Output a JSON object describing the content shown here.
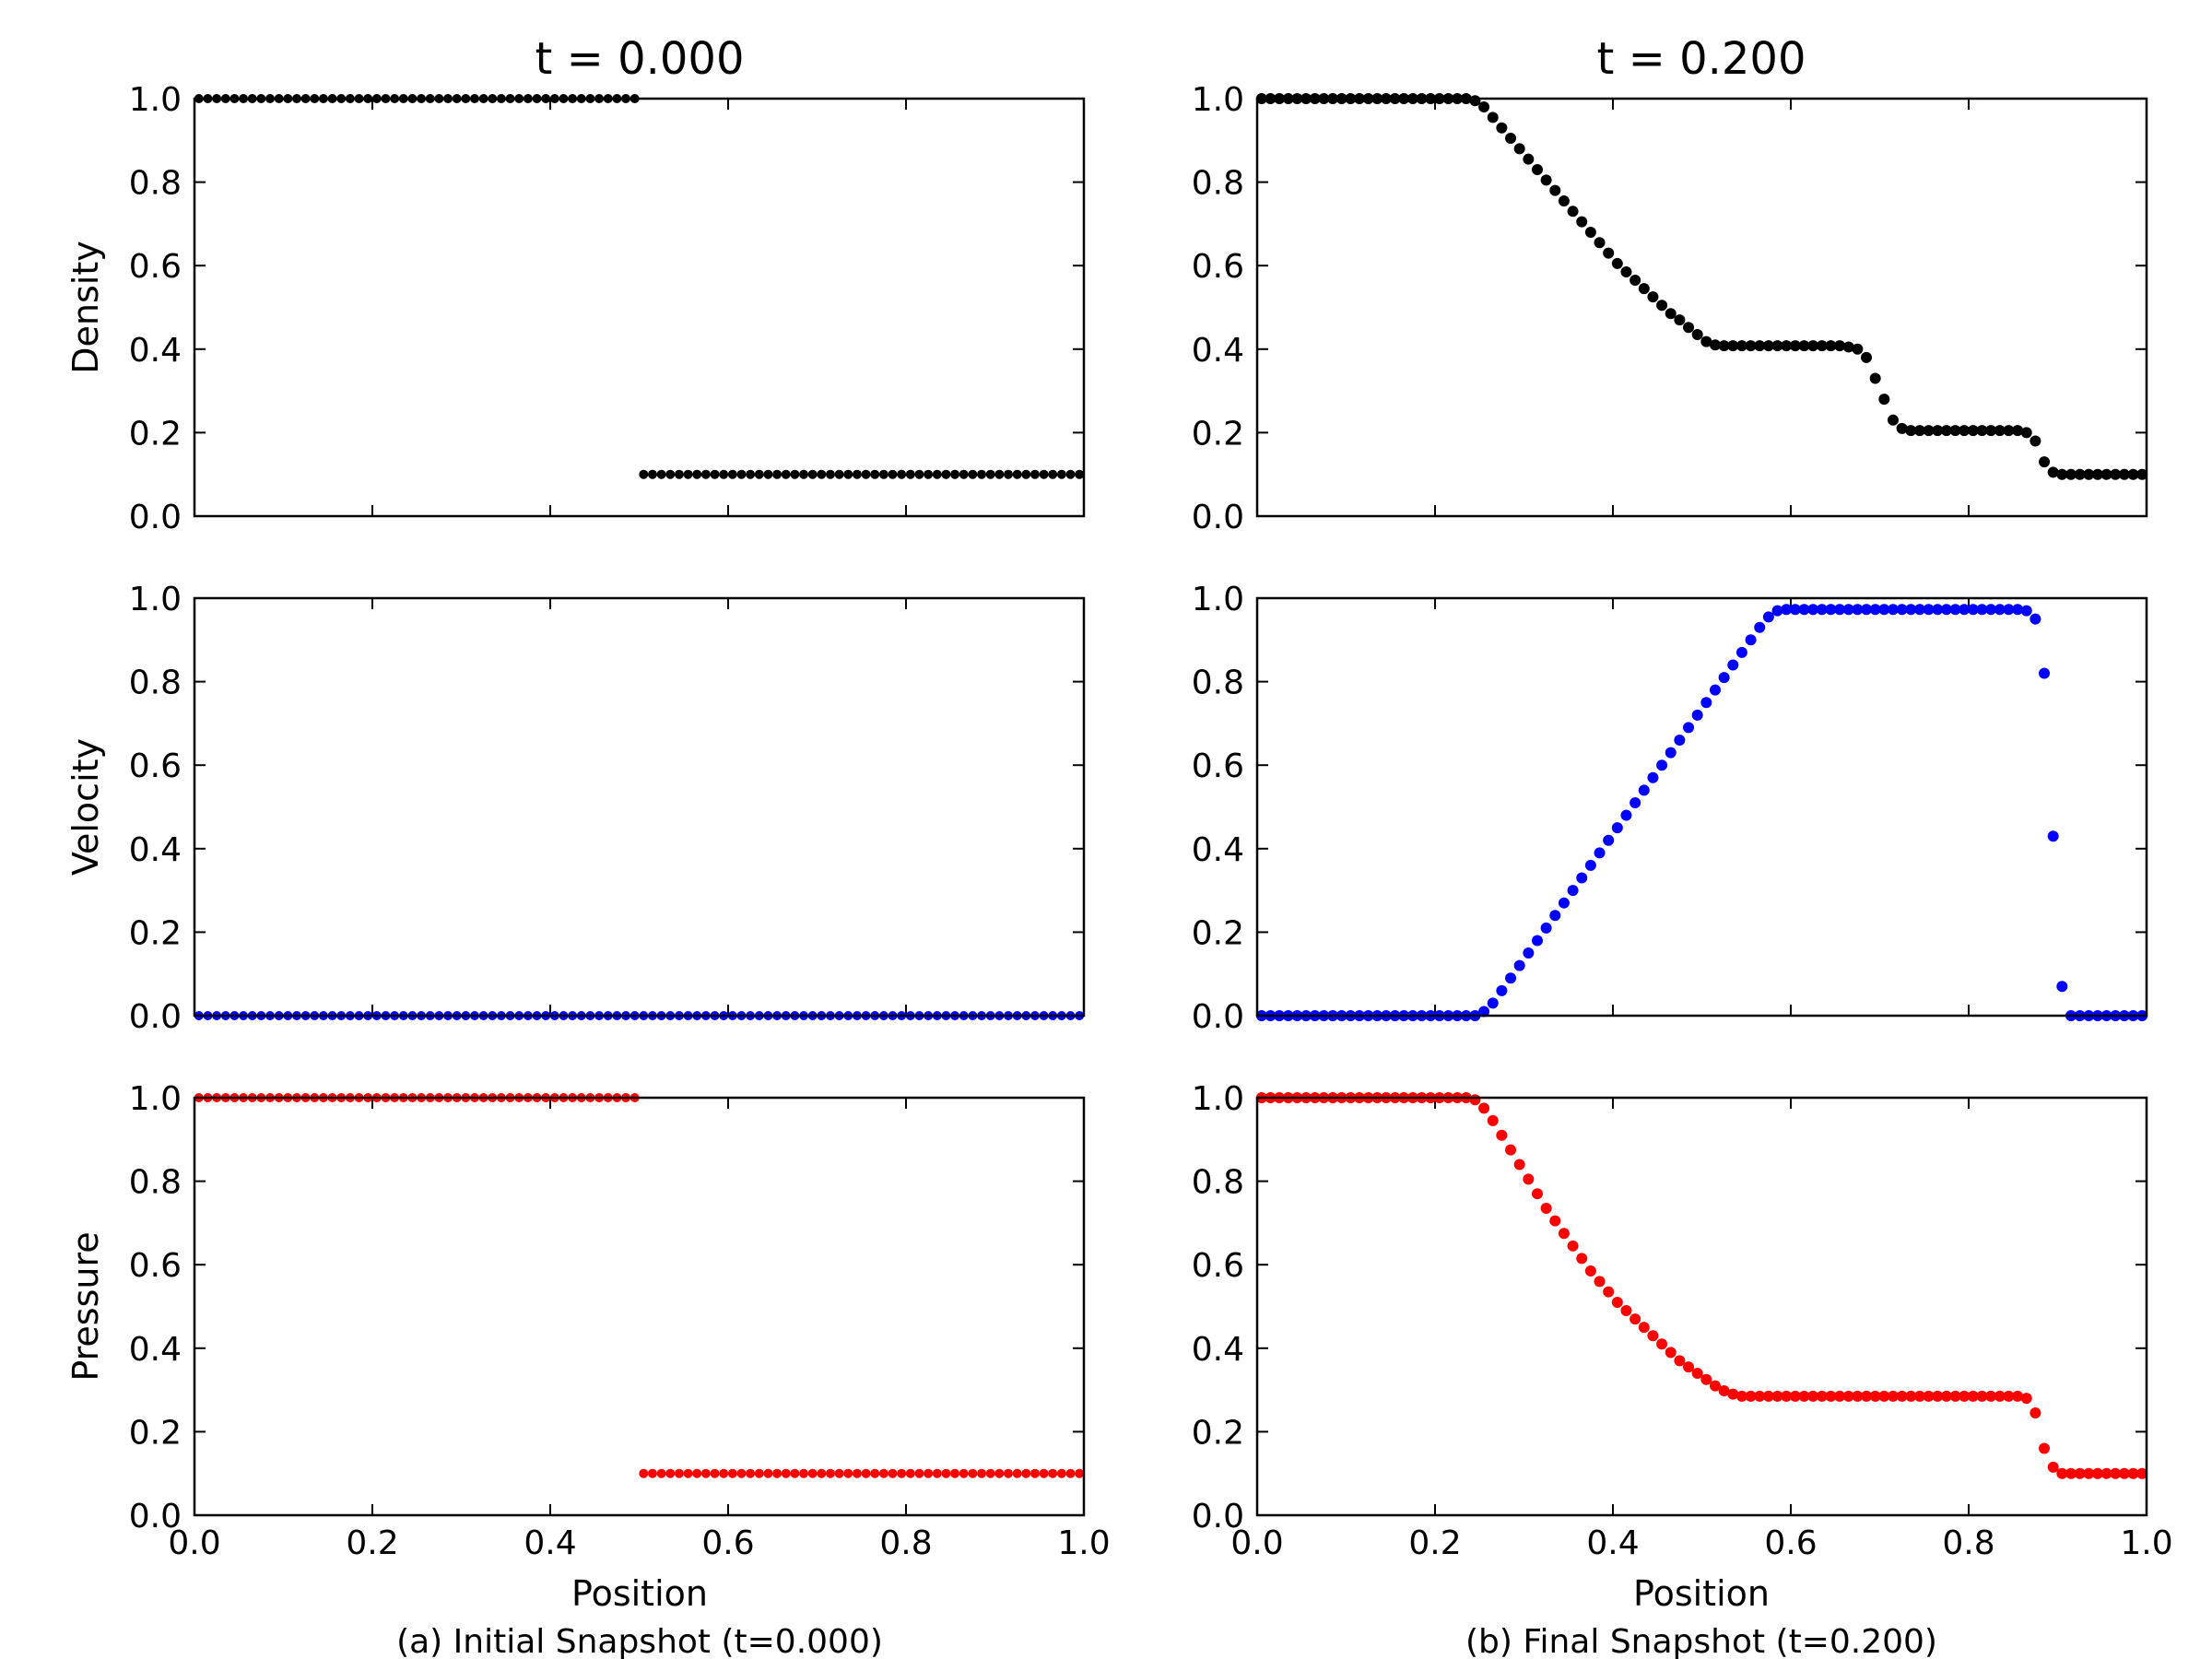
{
  "columns": [
    {
      "title": "t = 0.000",
      "xlabel": "Position",
      "caption": "(a) Initial Snapshot (t=0.000)"
    },
    {
      "title": "t = 0.200",
      "xlabel": "Position",
      "caption": "(b) Final Snapshot (t=0.200)"
    }
  ],
  "chart_data": [
    {
      "type": "scatter",
      "column": 0,
      "row": 0,
      "ylabel": "Density",
      "xlim": [
        0,
        1
      ],
      "ylim": [
        0,
        1
      ],
      "color": "#000000",
      "grid": false,
      "xticks": [
        "0.0",
        "0.2",
        "0.4",
        "0.6",
        "0.8",
        "1.0"
      ],
      "yticks": [
        "0.0",
        "0.2",
        "0.4",
        "0.6",
        "0.8",
        "1.0"
      ],
      "segments": [
        {
          "x_start": 0.005,
          "x_end": 0.495,
          "y_start": 1.0,
          "y_end": 1.0,
          "step": 0.01
        },
        {
          "x_start": 0.505,
          "x_end": 0.995,
          "y_start": 0.1,
          "y_end": 0.1,
          "step": 0.01
        }
      ]
    },
    {
      "type": "scatter",
      "column": 0,
      "row": 1,
      "ylabel": "Velocity",
      "xlim": [
        0,
        1
      ],
      "ylim": [
        0,
        1
      ],
      "color": "#0000ff",
      "grid": false,
      "xticks": [
        "0.0",
        "0.2",
        "0.4",
        "0.6",
        "0.8",
        "1.0"
      ],
      "yticks": [
        "0.0",
        "0.2",
        "0.4",
        "0.6",
        "0.8",
        "1.0"
      ],
      "segments": [
        {
          "x_start": 0.005,
          "x_end": 0.995,
          "y_start": 0.0,
          "y_end": 0.0,
          "step": 0.01
        }
      ]
    },
    {
      "type": "scatter",
      "column": 0,
      "row": 2,
      "ylabel": "Pressure",
      "xlim": [
        0,
        1
      ],
      "ylim": [
        0,
        1
      ],
      "color": "#ff0000",
      "grid": false,
      "xticks": [
        "0.0",
        "0.2",
        "0.4",
        "0.6",
        "0.8",
        "1.0"
      ],
      "yticks": [
        "0.0",
        "0.2",
        "0.4",
        "0.6",
        "0.8",
        "1.0"
      ],
      "segments": [
        {
          "x_start": 0.005,
          "x_end": 0.495,
          "y_start": 1.0,
          "y_end": 1.0,
          "step": 0.01
        },
        {
          "x_start": 0.505,
          "x_end": 0.995,
          "y_start": 0.1,
          "y_end": 0.1,
          "step": 0.01
        }
      ]
    },
    {
      "type": "scatter",
      "column": 1,
      "row": 0,
      "ylabel": "",
      "xlim": [
        0,
        1
      ],
      "ylim": [
        0,
        1
      ],
      "color": "#000000",
      "grid": false,
      "xticks": [
        "0.0",
        "0.2",
        "0.4",
        "0.6",
        "0.8",
        "1.0"
      ],
      "yticks": [
        "0.0",
        "0.2",
        "0.4",
        "0.6",
        "0.8",
        "1.0"
      ],
      "x": [
        0.005,
        0.015,
        0.025,
        0.035,
        0.045,
        0.055,
        0.065,
        0.075,
        0.085,
        0.095,
        0.105,
        0.115,
        0.125,
        0.135,
        0.145,
        0.155,
        0.165,
        0.175,
        0.185,
        0.195,
        0.205,
        0.215,
        0.225,
        0.235,
        0.245,
        0.255,
        0.265,
        0.275,
        0.285,
        0.295,
        0.305,
        0.315,
        0.325,
        0.335,
        0.345,
        0.355,
        0.365,
        0.375,
        0.385,
        0.395,
        0.405,
        0.415,
        0.425,
        0.435,
        0.445,
        0.455,
        0.465,
        0.475,
        0.485,
        0.495,
        0.505,
        0.515,
        0.525,
        0.535,
        0.545,
        0.555,
        0.565,
        0.575,
        0.585,
        0.595,
        0.605,
        0.615,
        0.625,
        0.635,
        0.645,
        0.655,
        0.665,
        0.675,
        0.685,
        0.695,
        0.705,
        0.715,
        0.725,
        0.735,
        0.745,
        0.755,
        0.765,
        0.775,
        0.785,
        0.795,
        0.805,
        0.815,
        0.825,
        0.835,
        0.845,
        0.855,
        0.865,
        0.875,
        0.885,
        0.895,
        0.905,
        0.915,
        0.925,
        0.935,
        0.945,
        0.955,
        0.965,
        0.975,
        0.985,
        0.995
      ],
      "y": [
        1.0,
        1.0,
        1.0,
        1.0,
        1.0,
        1.0,
        1.0,
        1.0,
        1.0,
        1.0,
        1.0,
        1.0,
        1.0,
        1.0,
        1.0,
        1.0,
        1.0,
        1.0,
        1.0,
        1.0,
        1.0,
        1.0,
        1.0,
        1.0,
        0.995,
        0.98,
        0.955,
        0.93,
        0.905,
        0.88,
        0.855,
        0.83,
        0.805,
        0.78,
        0.755,
        0.73,
        0.705,
        0.68,
        0.655,
        0.63,
        0.605,
        0.585,
        0.565,
        0.545,
        0.525,
        0.505,
        0.485,
        0.47,
        0.452,
        0.435,
        0.418,
        0.41,
        0.408,
        0.408,
        0.408,
        0.408,
        0.408,
        0.408,
        0.408,
        0.408,
        0.408,
        0.408,
        0.408,
        0.408,
        0.408,
        0.408,
        0.405,
        0.4,
        0.38,
        0.33,
        0.28,
        0.23,
        0.21,
        0.205,
        0.205,
        0.205,
        0.205,
        0.205,
        0.205,
        0.205,
        0.205,
        0.205,
        0.205,
        0.205,
        0.205,
        0.205,
        0.2,
        0.18,
        0.13,
        0.105,
        0.1,
        0.1,
        0.1,
        0.1,
        0.1,
        0.1,
        0.1,
        0.1,
        0.1,
        0.1
      ]
    },
    {
      "type": "scatter",
      "column": 1,
      "row": 1,
      "ylabel": "",
      "xlim": [
        0,
        1
      ],
      "ylim": [
        0,
        1
      ],
      "color": "#0000ff",
      "grid": false,
      "xticks": [
        "0.0",
        "0.2",
        "0.4",
        "0.6",
        "0.8",
        "1.0"
      ],
      "yticks": [
        "0.0",
        "0.2",
        "0.4",
        "0.6",
        "0.8",
        "1.0"
      ],
      "x": [
        0.005,
        0.015,
        0.025,
        0.035,
        0.045,
        0.055,
        0.065,
        0.075,
        0.085,
        0.095,
        0.105,
        0.115,
        0.125,
        0.135,
        0.145,
        0.155,
        0.165,
        0.175,
        0.185,
        0.195,
        0.205,
        0.215,
        0.225,
        0.235,
        0.245,
        0.255,
        0.265,
        0.275,
        0.285,
        0.295,
        0.305,
        0.315,
        0.325,
        0.335,
        0.345,
        0.355,
        0.365,
        0.375,
        0.385,
        0.395,
        0.405,
        0.415,
        0.425,
        0.435,
        0.445,
        0.455,
        0.465,
        0.475,
        0.485,
        0.495,
        0.505,
        0.515,
        0.525,
        0.535,
        0.545,
        0.555,
        0.565,
        0.575,
        0.585,
        0.595,
        0.605,
        0.615,
        0.625,
        0.635,
        0.645,
        0.655,
        0.665,
        0.675,
        0.685,
        0.695,
        0.705,
        0.715,
        0.725,
        0.735,
        0.745,
        0.755,
        0.765,
        0.775,
        0.785,
        0.795,
        0.805,
        0.815,
        0.825,
        0.835,
        0.845,
        0.855,
        0.865,
        0.875,
        0.885,
        0.895,
        0.905,
        0.915,
        0.925,
        0.935,
        0.945,
        0.955,
        0.965,
        0.975,
        0.985,
        0.995
      ],
      "y": [
        0.0,
        0.0,
        0.0,
        0.0,
        0.0,
        0.0,
        0.0,
        0.0,
        0.0,
        0.0,
        0.0,
        0.0,
        0.0,
        0.0,
        0.0,
        0.0,
        0.0,
        0.0,
        0.0,
        0.0,
        0.0,
        0.0,
        0.0,
        0.0,
        0.0,
        0.01,
        0.03,
        0.06,
        0.09,
        0.12,
        0.15,
        0.18,
        0.21,
        0.24,
        0.27,
        0.3,
        0.33,
        0.36,
        0.39,
        0.42,
        0.45,
        0.48,
        0.51,
        0.54,
        0.57,
        0.6,
        0.63,
        0.66,
        0.69,
        0.72,
        0.75,
        0.78,
        0.81,
        0.84,
        0.87,
        0.9,
        0.93,
        0.955,
        0.97,
        0.973,
        0.973,
        0.973,
        0.973,
        0.973,
        0.973,
        0.973,
        0.973,
        0.973,
        0.973,
        0.973,
        0.973,
        0.973,
        0.973,
        0.973,
        0.973,
        0.973,
        0.973,
        0.973,
        0.973,
        0.973,
        0.973,
        0.973,
        0.973,
        0.973,
        0.973,
        0.973,
        0.97,
        0.95,
        0.82,
        0.43,
        0.07,
        0.0,
        0.0,
        0.0,
        0.0,
        0.0,
        0.0,
        0.0,
        0.0,
        0.0
      ]
    },
    {
      "type": "scatter",
      "column": 1,
      "row": 2,
      "ylabel": "",
      "xlim": [
        0,
        1
      ],
      "ylim": [
        0,
        1
      ],
      "color": "#ff0000",
      "grid": false,
      "xticks": [
        "0.0",
        "0.2",
        "0.4",
        "0.6",
        "0.8",
        "1.0"
      ],
      "yticks": [
        "0.0",
        "0.2",
        "0.4",
        "0.6",
        "0.8",
        "1.0"
      ],
      "x": [
        0.005,
        0.015,
        0.025,
        0.035,
        0.045,
        0.055,
        0.065,
        0.075,
        0.085,
        0.095,
        0.105,
        0.115,
        0.125,
        0.135,
        0.145,
        0.155,
        0.165,
        0.175,
        0.185,
        0.195,
        0.205,
        0.215,
        0.225,
        0.235,
        0.245,
        0.255,
        0.265,
        0.275,
        0.285,
        0.295,
        0.305,
        0.315,
        0.325,
        0.335,
        0.345,
        0.355,
        0.365,
        0.375,
        0.385,
        0.395,
        0.405,
        0.415,
        0.425,
        0.435,
        0.445,
        0.455,
        0.465,
        0.475,
        0.485,
        0.495,
        0.505,
        0.515,
        0.525,
        0.535,
        0.545,
        0.555,
        0.565,
        0.575,
        0.585,
        0.595,
        0.605,
        0.615,
        0.625,
        0.635,
        0.645,
        0.655,
        0.665,
        0.675,
        0.685,
        0.695,
        0.705,
        0.715,
        0.725,
        0.735,
        0.745,
        0.755,
        0.765,
        0.775,
        0.785,
        0.795,
        0.805,
        0.815,
        0.825,
        0.835,
        0.845,
        0.855,
        0.865,
        0.875,
        0.885,
        0.895,
        0.905,
        0.915,
        0.925,
        0.935,
        0.945,
        0.955,
        0.965,
        0.975,
        0.985,
        0.995
      ],
      "y": [
        1.0,
        1.0,
        1.0,
        1.0,
        1.0,
        1.0,
        1.0,
        1.0,
        1.0,
        1.0,
        1.0,
        1.0,
        1.0,
        1.0,
        1.0,
        1.0,
        1.0,
        1.0,
        1.0,
        1.0,
        1.0,
        1.0,
        1.0,
        1.0,
        0.995,
        0.975,
        0.945,
        0.91,
        0.875,
        0.84,
        0.805,
        0.77,
        0.735,
        0.705,
        0.675,
        0.645,
        0.615,
        0.585,
        0.56,
        0.535,
        0.51,
        0.49,
        0.47,
        0.45,
        0.43,
        0.41,
        0.39,
        0.37,
        0.355,
        0.34,
        0.325,
        0.31,
        0.298,
        0.29,
        0.285,
        0.285,
        0.285,
        0.285,
        0.285,
        0.285,
        0.285,
        0.285,
        0.285,
        0.285,
        0.285,
        0.285,
        0.285,
        0.285,
        0.285,
        0.285,
        0.285,
        0.285,
        0.285,
        0.285,
        0.285,
        0.285,
        0.285,
        0.285,
        0.285,
        0.285,
        0.285,
        0.285,
        0.285,
        0.285,
        0.285,
        0.285,
        0.28,
        0.245,
        0.16,
        0.115,
        0.1,
        0.1,
        0.1,
        0.1,
        0.1,
        0.1,
        0.1,
        0.1,
        0.1,
        0.1
      ]
    }
  ]
}
